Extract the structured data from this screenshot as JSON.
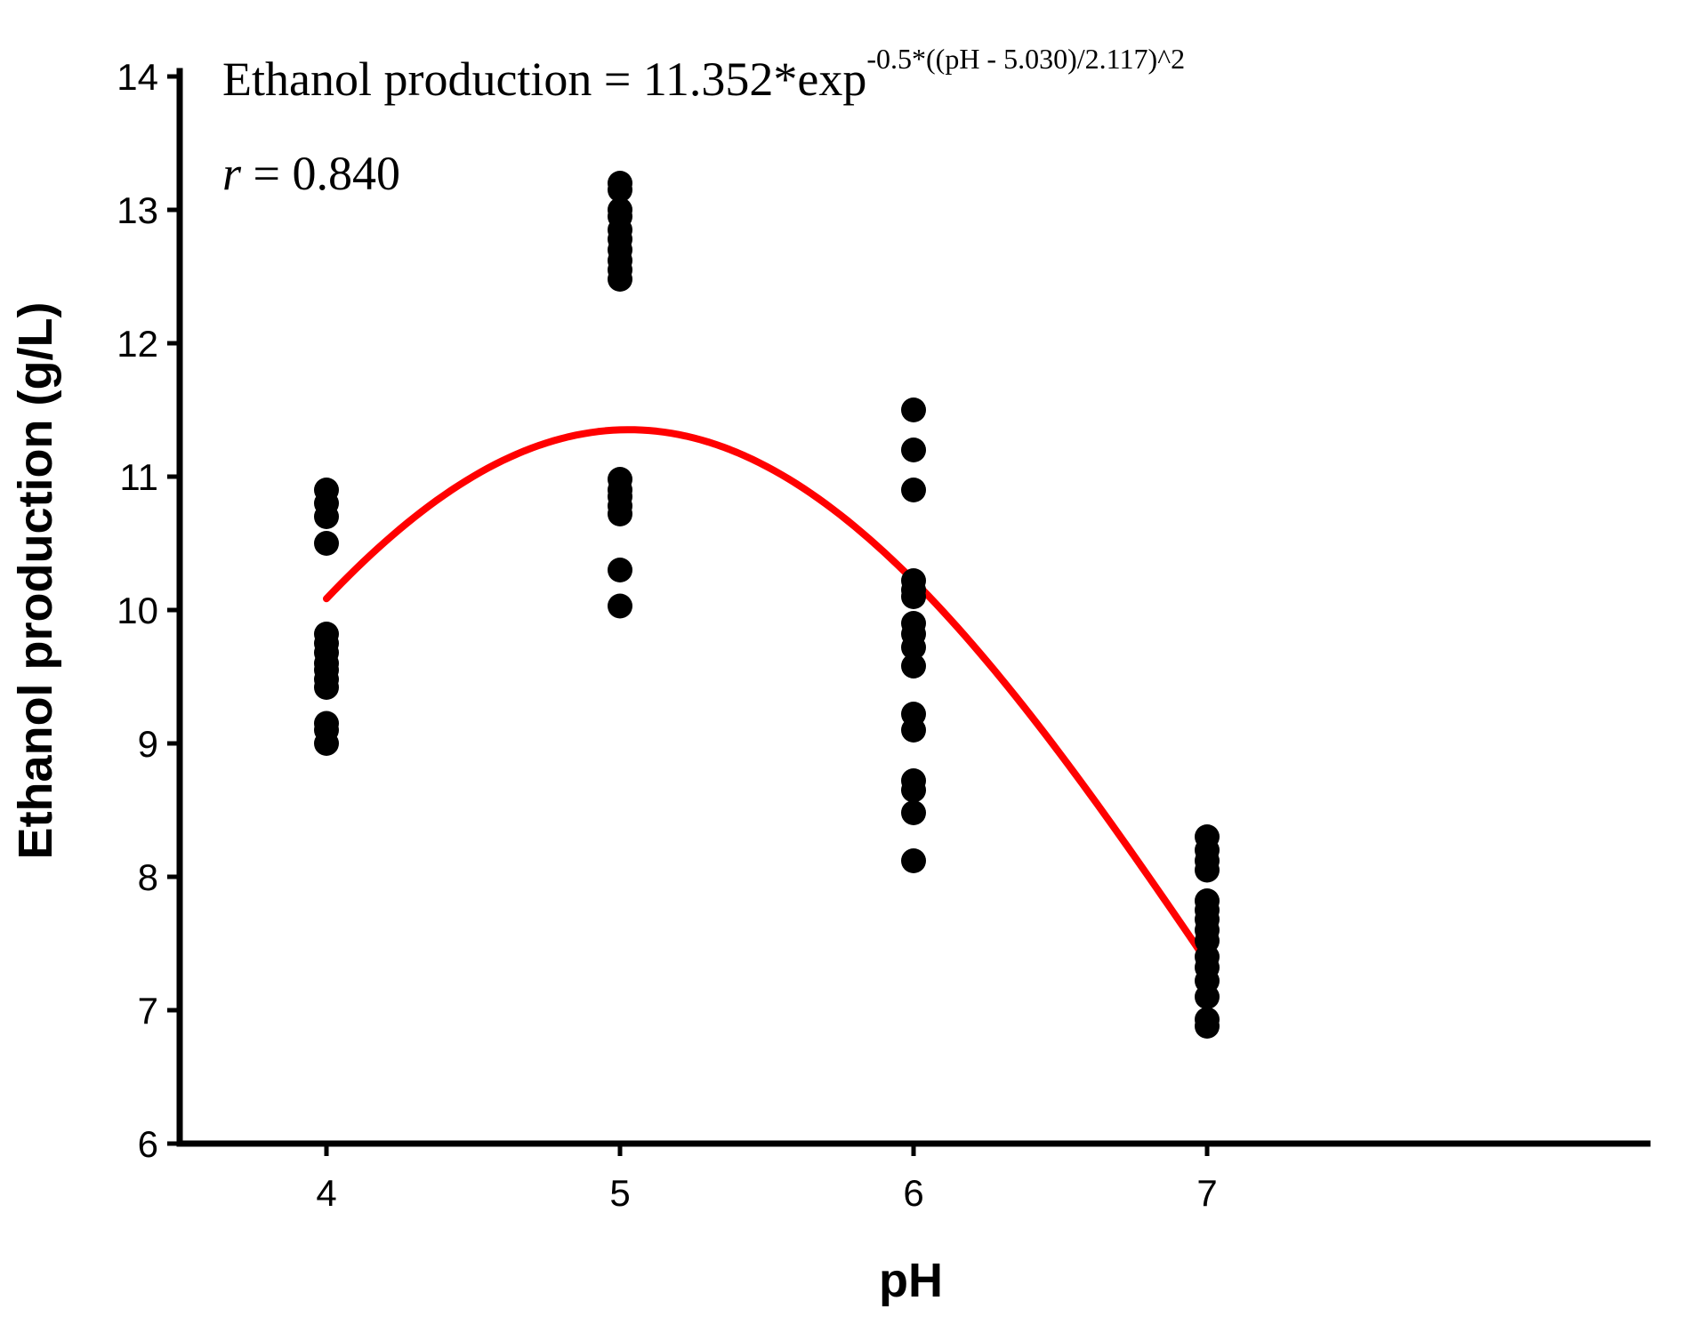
{
  "chart_data": {
    "type": "scatter",
    "title": "",
    "xlabel": "pH",
    "ylabel": "Ethanol production (g/L)",
    "xlim": [
      3.5,
      8.5
    ],
    "ylim": [
      6,
      14
    ],
    "x_ticks": [
      "4",
      "5",
      "6",
      "7"
    ],
    "y_ticks": [
      "6",
      "7",
      "8",
      "9",
      "10",
      "11",
      "12",
      "13",
      "14"
    ],
    "grid": false,
    "legend": "none",
    "annotations": {
      "equation_main": "Ethanol production = 11.352*exp",
      "equation_sup": "-0.5*((pH - 5.030)/2.117)^2",
      "r_symbol": "r",
      "r_value": " = 0.840"
    },
    "series": [
      {
        "type": "scatter",
        "color": "#000000",
        "points": [
          {
            "x": 4,
            "y": 10.9
          },
          {
            "x": 4,
            "y": 10.8
          },
          {
            "x": 4,
            "y": 10.7
          },
          {
            "x": 4,
            "y": 10.5
          },
          {
            "x": 4,
            "y": 9.82
          },
          {
            "x": 4,
            "y": 9.75
          },
          {
            "x": 4,
            "y": 9.68
          },
          {
            "x": 4,
            "y": 9.6
          },
          {
            "x": 4,
            "y": 9.55
          },
          {
            "x": 4,
            "y": 9.48
          },
          {
            "x": 4,
            "y": 9.42
          },
          {
            "x": 4,
            "y": 9.15
          },
          {
            "x": 4,
            "y": 9.1
          },
          {
            "x": 4,
            "y": 9.0
          },
          {
            "x": 5,
            "y": 13.2
          },
          {
            "x": 5,
            "y": 13.15
          },
          {
            "x": 5,
            "y": 13.0
          },
          {
            "x": 5,
            "y": 12.95
          },
          {
            "x": 5,
            "y": 12.85
          },
          {
            "x": 5,
            "y": 12.78
          },
          {
            "x": 5,
            "y": 12.7
          },
          {
            "x": 5,
            "y": 12.62
          },
          {
            "x": 5,
            "y": 12.55
          },
          {
            "x": 5,
            "y": 12.48
          },
          {
            "x": 5,
            "y": 10.98
          },
          {
            "x": 5,
            "y": 10.9
          },
          {
            "x": 5,
            "y": 10.85
          },
          {
            "x": 5,
            "y": 10.78
          },
          {
            "x": 5,
            "y": 10.72
          },
          {
            "x": 5,
            "y": 10.3
          },
          {
            "x": 5,
            "y": 10.03
          },
          {
            "x": 6,
            "y": 11.5
          },
          {
            "x": 6,
            "y": 11.2
          },
          {
            "x": 6,
            "y": 10.9
          },
          {
            "x": 6,
            "y": 10.22
          },
          {
            "x": 6,
            "y": 10.15
          },
          {
            "x": 6,
            "y": 10.1
          },
          {
            "x": 6,
            "y": 9.9
          },
          {
            "x": 6,
            "y": 9.82
          },
          {
            "x": 6,
            "y": 9.72
          },
          {
            "x": 6,
            "y": 9.58
          },
          {
            "x": 6,
            "y": 9.22
          },
          {
            "x": 6,
            "y": 9.1
          },
          {
            "x": 6,
            "y": 8.72
          },
          {
            "x": 6,
            "y": 8.65
          },
          {
            "x": 6,
            "y": 8.48
          },
          {
            "x": 6,
            "y": 8.12
          },
          {
            "x": 7,
            "y": 8.3
          },
          {
            "x": 7,
            "y": 8.2
          },
          {
            "x": 7,
            "y": 8.12
          },
          {
            "x": 7,
            "y": 8.05
          },
          {
            "x": 7,
            "y": 7.82
          },
          {
            "x": 7,
            "y": 7.75
          },
          {
            "x": 7,
            "y": 7.68
          },
          {
            "x": 7,
            "y": 7.6
          },
          {
            "x": 7,
            "y": 7.52
          },
          {
            "x": 7,
            "y": 7.4
          },
          {
            "x": 7,
            "y": 7.32
          },
          {
            "x": 7,
            "y": 7.22
          },
          {
            "x": 7,
            "y": 7.1
          },
          {
            "x": 7,
            "y": 6.93
          },
          {
            "x": 7,
            "y": 6.88
          }
        ]
      },
      {
        "type": "line",
        "color": "#ff0000",
        "model": {
          "a": 11.352,
          "x0": 5.03,
          "b": 2.117
        },
        "x_range": [
          4,
          7
        ]
      }
    ]
  }
}
